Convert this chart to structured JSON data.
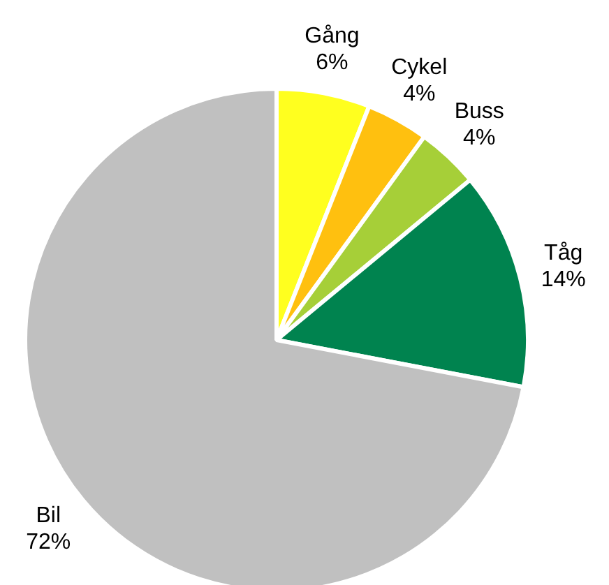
{
  "chart_data": {
    "type": "pie",
    "categories": [
      "Gång",
      "Cykel",
      "Buss",
      "Tåg",
      "Bil"
    ],
    "values": [
      6,
      4,
      4,
      14,
      72
    ],
    "colors": [
      "#ffff1f",
      "#ffc00f",
      "#a6cf38",
      "#00834f",
      "#c0c0c0"
    ],
    "value_labels": [
      "6%",
      "4%",
      "4%",
      "14%",
      "72%"
    ],
    "legend": false
  }
}
